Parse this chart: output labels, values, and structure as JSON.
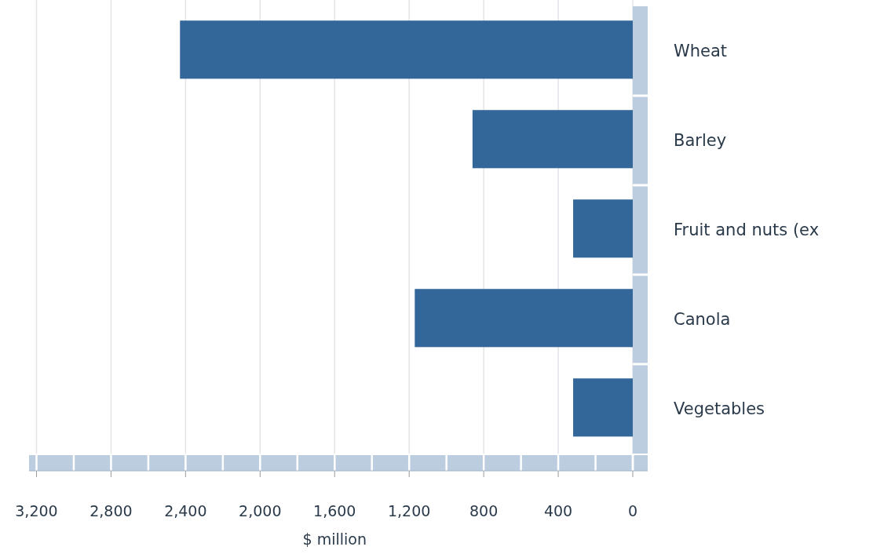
{
  "chart_data": {
    "type": "bar",
    "orientation": "horizontal",
    "xlabel": "$ million",
    "categories": [
      "Wheat",
      "Barley",
      "Fruit and nuts (ex",
      "Canola",
      "Vegetables"
    ],
    "values": [
      2430,
      860,
      320,
      1170,
      320
    ],
    "color": "#336699",
    "xlim": [
      3240,
      -80
    ],
    "xticks": [
      {
        "value": 3200,
        "label": "3,200"
      },
      {
        "value": 2800,
        "label": "2,800"
      },
      {
        "value": 2400,
        "label": "2,400"
      },
      {
        "value": 2000,
        "label": "2,000"
      },
      {
        "value": 1600,
        "label": "1,600"
      },
      {
        "value": 1200,
        "label": "1,200"
      },
      800,
      400,
      0
    ],
    "grid": "x"
  }
}
